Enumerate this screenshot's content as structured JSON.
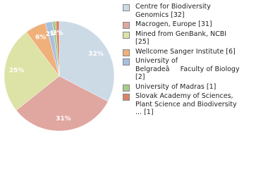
{
  "chart_data": {
    "type": "pie",
    "categories": [
      "Centre for Biodiversity Genomics [32]",
      "Macrogen, Europe [31]",
      "Mined from GenBank, NCBI [25]",
      "Wellcome Sanger Institute [6]",
      "University of BelgradeâFaculty of Biology [2]",
      "University of Madras [1]",
      "Slovak Academy of Sciences, Plant Science and Biodiversity ... [1]"
    ],
    "values": [
      32,
      31,
      25,
      6,
      2,
      1,
      1
    ],
    "value_labels": [
      "32%",
      "31%",
      "25%",
      "6%",
      "2%",
      "1%",
      "1%"
    ],
    "colors": [
      "#ccdae6",
      "#e0a6a0",
      "#dde2a6",
      "#f0b07a",
      "#a8bfe0",
      "#a8cc8c",
      "#d98468"
    ],
    "legend": "right"
  }
}
